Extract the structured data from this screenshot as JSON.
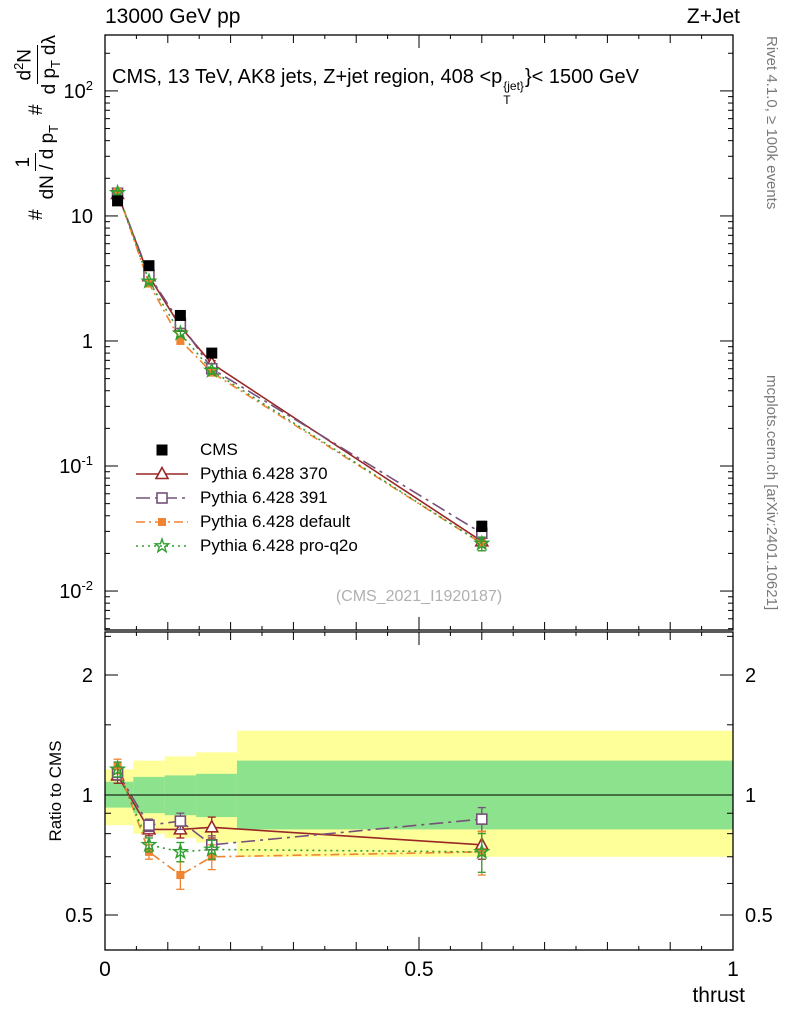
{
  "header": {
    "left": "13000 GeV pp",
    "right": "Z+Jet"
  },
  "panel_title": {
    "prefix": "CMS, 13 TeV, AK8 jets, Z+jet region, 408 <p",
    "sup": "{jet}",
    "sub": "T",
    "suffix": "}< 1500 GeV"
  },
  "watermark": "(CMS_2021_I1920187)",
  "right_margin": {
    "top": "Rivet 4.1.0, ≥ 100k events",
    "bottom": "mcplots.cern.ch [arXiv:2401.10621]"
  },
  "ylabel_main": {
    "hash1": "#",
    "f1_num": "1",
    "f1_den_main": "dN / d p",
    "f1_den_sub": "T",
    "hash2": "#",
    "f2_num_a": "d",
    "f2_num_sup": "2",
    "f2_num_b": "N",
    "f2_den_a": "d p",
    "f2_den_sub": "T",
    "f2_den_b": "dλ"
  },
  "ratio_ylabel": "Ratio to CMS",
  "xlabel": "thrust",
  "axes": {
    "x": {
      "min": 0,
      "max": 1,
      "major_ticks": [
        {
          "v": 0,
          "label": "0"
        },
        {
          "v": 0.5,
          "label": "0.5"
        },
        {
          "v": 1,
          "label": "1"
        }
      ]
    },
    "y_main": {
      "scale": "log",
      "lim": [
        0.00488,
        280
      ],
      "decades": [
        {
          "v": 100,
          "base": "10",
          "exp": "2"
        },
        {
          "v": 10,
          "base": "10",
          "exp": ""
        },
        {
          "v": 1,
          "base": "1",
          "exp": ""
        },
        {
          "v": 0.1,
          "base": "10",
          "exp": "-1"
        },
        {
          "v": 0.01,
          "base": "10",
          "exp": "-2"
        }
      ]
    },
    "y_ratio": {
      "scale": "log",
      "lim": [
        0.4085,
        2.564
      ],
      "ticks": [
        {
          "v": 0.5,
          "label": "0.5"
        },
        {
          "v": 1,
          "label": "1"
        },
        {
          "v": 2,
          "label": "2"
        }
      ],
      "minor": [
        0.6,
        0.7,
        0.8,
        0.9,
        1.5,
        2.5
      ]
    }
  },
  "legend": {
    "entries": [
      "CMS",
      "Pythia 6.428 370",
      "Pythia 6.428 391",
      "Pythia 6.428 default",
      "Pythia 6.428 pro-q2o"
    ]
  },
  "chart_data": {
    "type": "line",
    "title": "CMS, 13 TeV, AK8 jets, Z+jet region, 408 <pT{jet}< 1500 GeV",
    "xlabel": "thrust",
    "ylabel": "1/(dN/dpT) d²N/(dpT dλ)",
    "x": [
      0.02,
      0.07,
      0.12,
      0.17,
      0.6
    ],
    "main": {
      "ylog": true,
      "ylim": [
        0.00488,
        280
      ],
      "series": [
        {
          "name": "CMS",
          "color": "#000000",
          "marker": "square-filled",
          "dash": "none",
          "values": [
            13.2,
            4.0,
            1.6,
            0.8,
            0.033
          ],
          "yerr": [
            0.8,
            0.25,
            0.1,
            0.05,
            0.003
          ]
        },
        {
          "name": "Pythia 6.428 370",
          "color": "#9a2727",
          "marker": "triangle-open",
          "dash": "solid",
          "values": [
            15.0,
            3.3,
            1.3,
            0.66,
            0.025
          ],
          "yerr": [
            0.5,
            0.12,
            0.06,
            0.035,
            0.002
          ]
        },
        {
          "name": "Pythia 6.428 391",
          "color": "#77507a",
          "marker": "square-open",
          "dash": "dashdot",
          "values": [
            15.2,
            3.36,
            1.38,
            0.6,
            0.029
          ],
          "yerr": [
            0.5,
            0.12,
            0.06,
            0.03,
            0.002
          ]
        },
        {
          "name": "Pythia 6.428 default",
          "color": "#f08433",
          "marker": "square-filled-small",
          "dash": "dashdot-short",
          "values": [
            15.6,
            2.88,
            1.01,
            0.56,
            0.024
          ],
          "yerr": [
            0.5,
            0.12,
            0.07,
            0.035,
            0.003
          ]
        },
        {
          "name": "Pythia 6.428 pro-q2o",
          "color": "#2f9e2f",
          "marker": "star-open",
          "dash": "dotted",
          "values": [
            15.3,
            3.0,
            1.15,
            0.58,
            0.024
          ],
          "yerr": [
            0.5,
            0.12,
            0.06,
            0.03,
            0.003
          ]
        }
      ]
    },
    "ratio": {
      "ylog": true,
      "ylim": [
        0.4085,
        2.564
      ],
      "ref_line": 1.0,
      "series": [
        {
          "name": "Pythia 6.428 370",
          "values": [
            1.12,
            0.82,
            0.82,
            0.83,
            0.75
          ],
          "yerr": [
            0.05,
            0.03,
            0.04,
            0.05,
            0.06
          ]
        },
        {
          "name": "Pythia 6.428 391",
          "values": [
            1.14,
            0.84,
            0.86,
            0.75,
            0.87
          ],
          "yerr": [
            0.05,
            0.03,
            0.04,
            0.04,
            0.06
          ]
        },
        {
          "name": "Pythia 6.428 default",
          "values": [
            1.18,
            0.72,
            0.63,
            0.7,
            0.72
          ],
          "yerr": [
            0.05,
            0.03,
            0.05,
            0.05,
            0.09
          ]
        },
        {
          "name": "Pythia 6.428 pro-q2o",
          "values": [
            1.16,
            0.75,
            0.72,
            0.73,
            0.72
          ],
          "yerr": [
            0.05,
            0.03,
            0.04,
            0.04,
            0.08
          ]
        }
      ],
      "bands": {
        "edges": [
          0,
          0.045,
          0.095,
          0.145,
          0.21,
          1.0
        ],
        "yellow": [
          [
            0.84,
            1.16
          ],
          [
            0.8,
            1.22
          ],
          [
            0.78,
            1.25
          ],
          [
            0.76,
            1.28
          ],
          [
            0.7,
            1.45
          ]
        ],
        "green": [
          [
            0.93,
            1.08
          ],
          [
            0.9,
            1.11
          ],
          [
            0.89,
            1.12
          ],
          [
            0.88,
            1.13
          ],
          [
            0.82,
            1.22
          ]
        ],
        "yellow_color": "#ffff99",
        "green_color": "#8de28d"
      }
    }
  }
}
